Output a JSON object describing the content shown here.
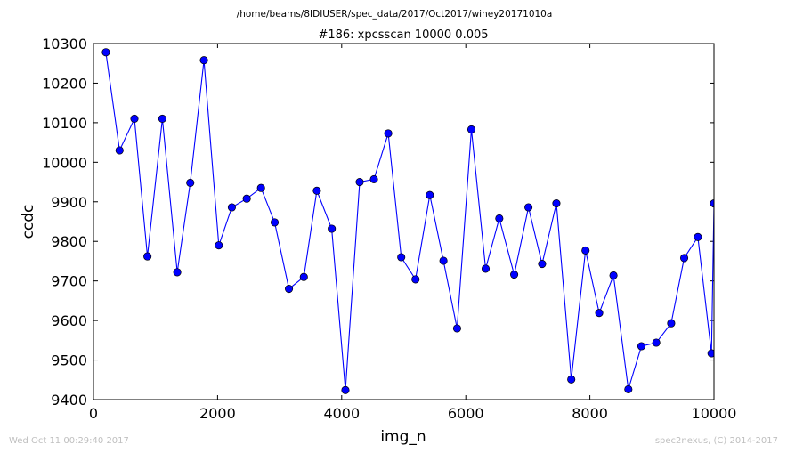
{
  "header": {
    "file_path": "/home/beams/8IDIUSER/spec_data/2017/Oct2017/winey20171010a",
    "scan_title": "#186: xpcsscan 10000 0.005"
  },
  "footer": {
    "timestamp": "Wed Oct 11 00:29:40 2017",
    "credit": "spec2nexus, (C) 2014-2017"
  },
  "chart_data": {
    "type": "line",
    "title": "#186: xpcsscan 10000 0.005",
    "xlabel": "img_n",
    "ylabel": "ccdc",
    "xlim": [
      0,
      10000
    ],
    "ylim": [
      9400,
      10300
    ],
    "xticks": [
      0,
      2000,
      4000,
      6000,
      8000,
      10000
    ],
    "yticks": [
      9400,
      9500,
      9600,
      9700,
      9800,
      9900,
      10000,
      10100,
      10200,
      10300
    ],
    "marker": "circle",
    "line_color": "#0000ff",
    "marker_color": "#0000ff",
    "grid": false,
    "series": [
      {
        "x": [
          200,
          420,
          660,
          870,
          1110,
          1350,
          1560,
          1780,
          2020,
          2230,
          2470,
          2700,
          2920,
          3150,
          3390,
          3600,
          3840,
          4060,
          4290,
          4520,
          4750,
          4960,
          5190,
          5420,
          5640,
          5860,
          6090,
          6320,
          6540,
          6780,
          7010,
          7230,
          7460,
          7700,
          7930,
          8150,
          8380,
          8620,
          8830,
          9070,
          9310,
          9520,
          9740,
          9960,
          10000
        ],
        "y": [
          10278,
          10030,
          10110,
          9762,
          10110,
          9722,
          9948,
          10258,
          9790,
          9886,
          9908,
          9935,
          9848,
          9680,
          9710,
          9928,
          9832,
          9424,
          9950,
          9957,
          10073,
          9760,
          9704,
          9917,
          9751,
          9580,
          10083,
          9731,
          9858,
          9716,
          9886,
          9743,
          9896,
          9451,
          9777,
          9619,
          9714,
          9426,
          9535,
          9544,
          9593,
          9758,
          9811,
          9517,
          9896
        ]
      }
    ]
  }
}
